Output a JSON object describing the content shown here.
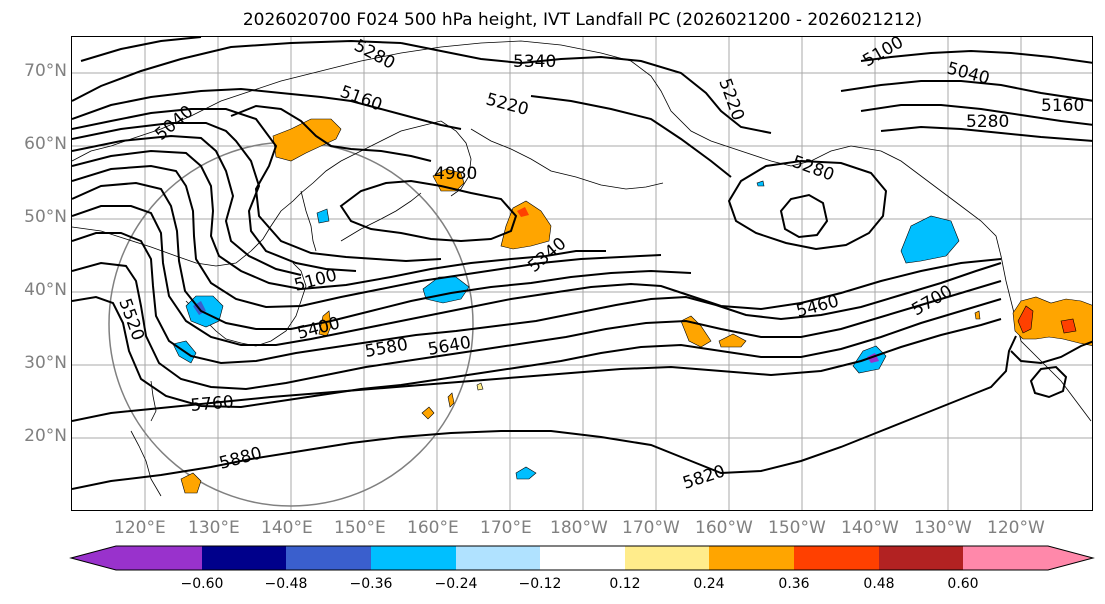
{
  "title": "2026020700 F024 500 hPa height, IVT Landfall PC (2026021200 - 2026021212)",
  "lat_labels": [
    "70°N",
    "60°N",
    "50°N",
    "40°N",
    "30°N",
    "20°N"
  ],
  "lon_labels": [
    "120°E",
    "130°E",
    "140°E",
    "150°E",
    "160°E",
    "170°E",
    "180°W",
    "170°W",
    "160°W",
    "150°W",
    "140°W",
    "130°W",
    "120°W"
  ],
  "contour_labels": [
    "5280",
    "5340",
    "5100",
    "5040",
    "5160",
    "5220",
    "5220",
    "5160",
    "5280",
    "5040",
    "5280",
    "4980",
    "5340",
    "5460",
    "5700",
    "5100",
    "5400",
    "5580",
    "5640",
    "5520",
    "5760",
    "5880",
    "5820"
  ],
  "colorbar": {
    "colors": [
      "#9932cc",
      "#00008b",
      "#3a5fcd",
      "#00bfff",
      "#b0e2ff",
      "#ffffff",
      "#ffec8b",
      "#ffa500",
      "#ff4000",
      "#b22222",
      "#ff88aa"
    ],
    "ticks": [
      "−0.60",
      "−0.48",
      "−0.36",
      "−0.24",
      "−0.12",
      "0.12",
      "0.24",
      "0.36",
      "0.48",
      "0.60"
    ]
  },
  "style": {
    "contour_color": "#000000",
    "grid_color": "#a9a9a9",
    "label_color": "#808080"
  }
}
